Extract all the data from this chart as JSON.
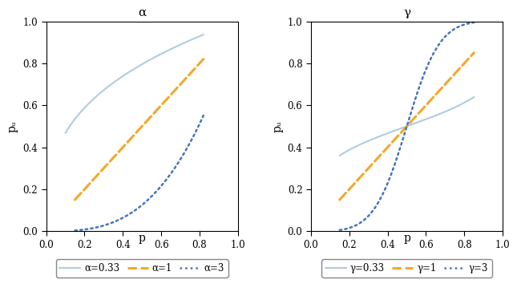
{
  "title_left": "α",
  "title_right": "γ",
  "xlabel": "p",
  "ylabel": "pᵤ",
  "xlim": [
    0.0,
    1.0
  ],
  "ylim": [
    0.0,
    1.0
  ],
  "xticks": [
    0.0,
    0.2,
    0.4,
    0.6,
    0.8,
    1.0
  ],
  "yticks": [
    0.0,
    0.2,
    0.4,
    0.6,
    0.8,
    1.0
  ],
  "alpha_values": [
    0.33,
    1,
    3
  ],
  "gamma_values": [
    0.33,
    1,
    3
  ],
  "p_ranges_alpha": [
    [
      0.1,
      0.82
    ],
    [
      0.15,
      0.82
    ],
    [
      0.15,
      0.82
    ]
  ],
  "p_ranges_gamma": [
    [
      0.15,
      0.85
    ],
    [
      0.15,
      0.85
    ],
    [
      0.15,
      0.85
    ]
  ],
  "color_low": "#AECDE1",
  "color_mid": "#F4A82A",
  "color_high": "#4477BB",
  "linestyles": [
    "solid",
    "dashed",
    "dotted"
  ],
  "linewidths": [
    1.5,
    2.2,
    1.8
  ],
  "legend_labels_left": [
    "α=0.33",
    "α=1",
    "α=3"
  ],
  "legend_labels_right": [
    "γ=0.33",
    "γ=1",
    "γ=3"
  ],
  "bg_color": "#FFFFFF",
  "panel_bg": "#FFFFFF",
  "figsize": [
    6.4,
    3.79
  ],
  "dpi": 100
}
